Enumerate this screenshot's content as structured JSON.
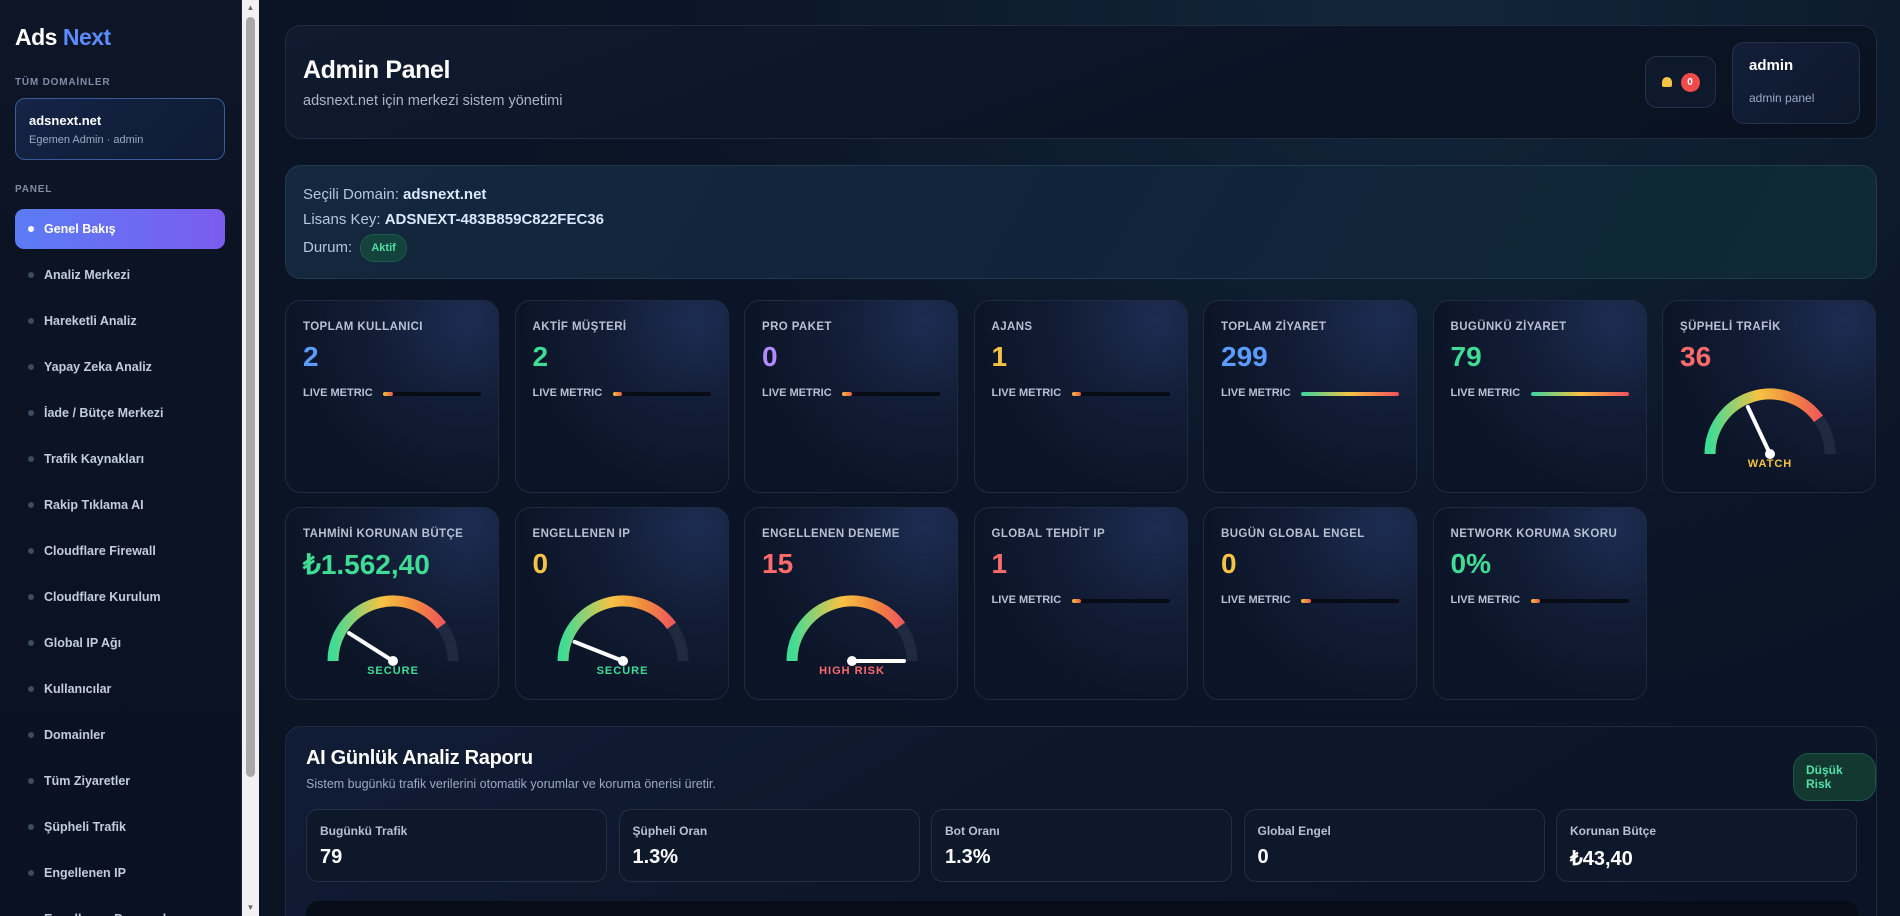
{
  "brand": {
    "part1": "Ads",
    "part2": "Next"
  },
  "sidebar": {
    "domains_title": "TÜM DOMAİNLER",
    "domain": {
      "name": "adsnext.net",
      "role": "Egemen Admin · admin"
    },
    "panel_title": "PANEL",
    "items": [
      {
        "label": "Genel Bakış"
      },
      {
        "label": "Analiz Merkezi"
      },
      {
        "label": "Hareketli Analiz"
      },
      {
        "label": "Yapay Zeka Analiz"
      },
      {
        "label": "İade / Bütçe Merkezi"
      },
      {
        "label": "Trafik Kaynakları"
      },
      {
        "label": "Rakip Tıklama AI"
      },
      {
        "label": "Cloudflare Firewall"
      },
      {
        "label": "Cloudflare Kurulum"
      },
      {
        "label": "Global IP Ağı"
      },
      {
        "label": "Kullanıcılar"
      },
      {
        "label": "Domainler"
      },
      {
        "label": "Tüm Ziyaretler"
      },
      {
        "label": "Şüpheli Trafik"
      },
      {
        "label": "Engellenen IP"
      },
      {
        "label": "Engellenen Denemeler"
      }
    ]
  },
  "header": {
    "title": "Admin Panel",
    "subtitle": "adsnext.net için merkezi sistem yönetimi",
    "notification_count": "0",
    "user_name": "admin",
    "user_role": "admin panel"
  },
  "info": {
    "domain_label": "Seçili Domain:",
    "domain_value": "adsnext.net",
    "license_label": "Lisans Key:",
    "license_value": "ADSNEXT-483B859C822FEC36",
    "status_label": "Durum:",
    "status_value": "Aktif"
  },
  "live_label": "LIVE METRIC",
  "colors": {
    "blue": "#5b9cff",
    "green": "#3fdc95",
    "purple": "#b28cff",
    "yellow": "#f6c343",
    "red": "#ff6b6b"
  },
  "stats_row1": [
    {
      "label": "TOPLAM KULLANICI",
      "value": "2",
      "color": "#5b9cff",
      "level": 0.1
    },
    {
      "label": "AKTİF MÜŞTERİ",
      "value": "2",
      "color": "#3fdc95",
      "level": 0.1
    },
    {
      "label": "PRO PAKET",
      "value": "0",
      "color": "#b28cff",
      "level": 0.1
    },
    {
      "label": "AJANS",
      "value": "1",
      "color": "#f6c343",
      "level": 0.1
    },
    {
      "label": "TOPLAM ZİYARET",
      "value": "299",
      "color": "#5b9cff",
      "level": 1.0
    },
    {
      "label": "BUGÜNKÜ ZİYARET",
      "value": "79",
      "color": "#3fdc95",
      "level": 1.0
    },
    {
      "label": "ŞÜPHELİ TRAFİK",
      "value": "36",
      "color": "#ff6b6b",
      "gauge": true,
      "gauge_level": 0.36,
      "gauge_text": "WATCH",
      "gauge_color": "#f6c343"
    }
  ],
  "stats_row2": [
    {
      "label": "TAHMİNİ KORUNAN BÜTÇE",
      "value": "₺1.562,40",
      "color": "#3fdc95",
      "gauge": true,
      "gauge_level": 0.18,
      "gauge_text": "SECURE",
      "gauge_color": "#3fdc95"
    },
    {
      "label": "ENGELLENEN IP",
      "value": "0",
      "color": "#f6c343",
      "gauge": true,
      "gauge_level": 0.12,
      "gauge_text": "SECURE",
      "gauge_color": "#3fdc95"
    },
    {
      "label": "ENGELLENEN DENEME",
      "value": "15",
      "color": "#ff6b6b",
      "gauge": true,
      "gauge_level": 1.0,
      "gauge_text": "HIGH RISK",
      "gauge_color": "#ff6b6b"
    },
    {
      "label": "GLOBAL TEHDİT IP",
      "value": "1",
      "color": "#ff6b6b",
      "level": 0.1
    },
    {
      "label": "BUGÜN GLOBAL ENGEL",
      "value": "0",
      "color": "#f6c343",
      "level": 0.1
    },
    {
      "label": "NETWORK KORUMA SKORU",
      "value": "0%",
      "color": "#3fdc95",
      "level": 0.1
    }
  ],
  "ai_report": {
    "title": "AI Günlük Analiz Raporu",
    "subtitle": "Sistem bugünkü trafik verilerini otomatik yorumlar ve koruma önerisi üretir.",
    "risk": "Düşük Risk",
    "metrics": [
      {
        "label": "Bugünkü Trafik",
        "value": "79"
      },
      {
        "label": "Şüpheli Oran",
        "value": "1.3%"
      },
      {
        "label": "Bot Oranı",
        "value": "1.3%"
      },
      {
        "label": "Global Engel",
        "value": "0"
      },
      {
        "label": "Korunan Bütçe",
        "value": "₺43,40"
      }
    ]
  }
}
